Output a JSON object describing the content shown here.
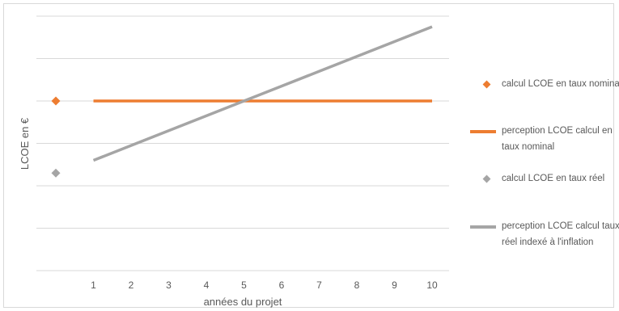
{
  "chart_data": {
    "type": "line",
    "title": "",
    "xlabel": "années du projet",
    "ylabel": "LCOE en €",
    "categories": [
      "1",
      "2",
      "3",
      "4",
      "5",
      "6",
      "7",
      "8",
      "9",
      "10"
    ],
    "ylim": [
      0,
      6
    ],
    "grid": true,
    "legend_position": "right",
    "series": [
      {
        "name": "calcul LCOE en taux nominal",
        "kind": "marker",
        "x": 0,
        "value": 4.0,
        "color": "#ED7D31"
      },
      {
        "name": "perception LCOE calcul en taux nominal",
        "kind": "line",
        "values": [
          4.0,
          4.0,
          4.0,
          4.0,
          4.0,
          4.0,
          4.0,
          4.0,
          4.0,
          4.0
        ],
        "color": "#ED7D31"
      },
      {
        "name": "calcul LCOE en taux réel",
        "kind": "marker",
        "x": 0,
        "value": 2.3,
        "color": "#A5A5A5"
      },
      {
        "name": "perception LCOE calcul taux réel indexé à l'inflation",
        "kind": "line",
        "values": [
          2.6,
          2.95,
          3.3,
          3.65,
          4.0,
          4.35,
          4.7,
          5.05,
          5.4,
          5.75
        ],
        "color": "#A5A5A5"
      }
    ]
  }
}
